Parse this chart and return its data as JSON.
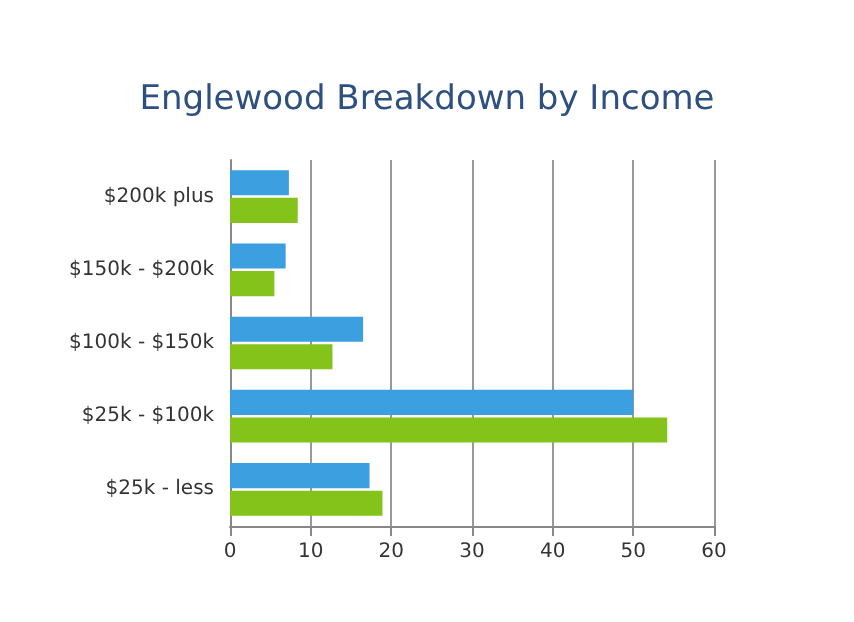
{
  "chart_data": {
    "type": "bar",
    "orientation": "horizontal",
    "title": "Englewood Breakdown by Income",
    "categories": [
      "$200k plus",
      "$150k - $200k",
      "$100k - $150k",
      "$25k - $100k",
      "$25k - less"
    ],
    "series": [
      {
        "color": "#3b9fe0",
        "values": [
          7.3,
          6.9,
          16.5,
          50,
          17.3
        ]
      },
      {
        "color": "#84c31a",
        "values": [
          8.4,
          5.5,
          12.7,
          54.2,
          18.9
        ]
      }
    ],
    "xlim": [
      0,
      60
    ],
    "xticks": [
      0,
      10,
      20,
      30,
      40,
      50,
      60
    ],
    "grid": "x"
  }
}
